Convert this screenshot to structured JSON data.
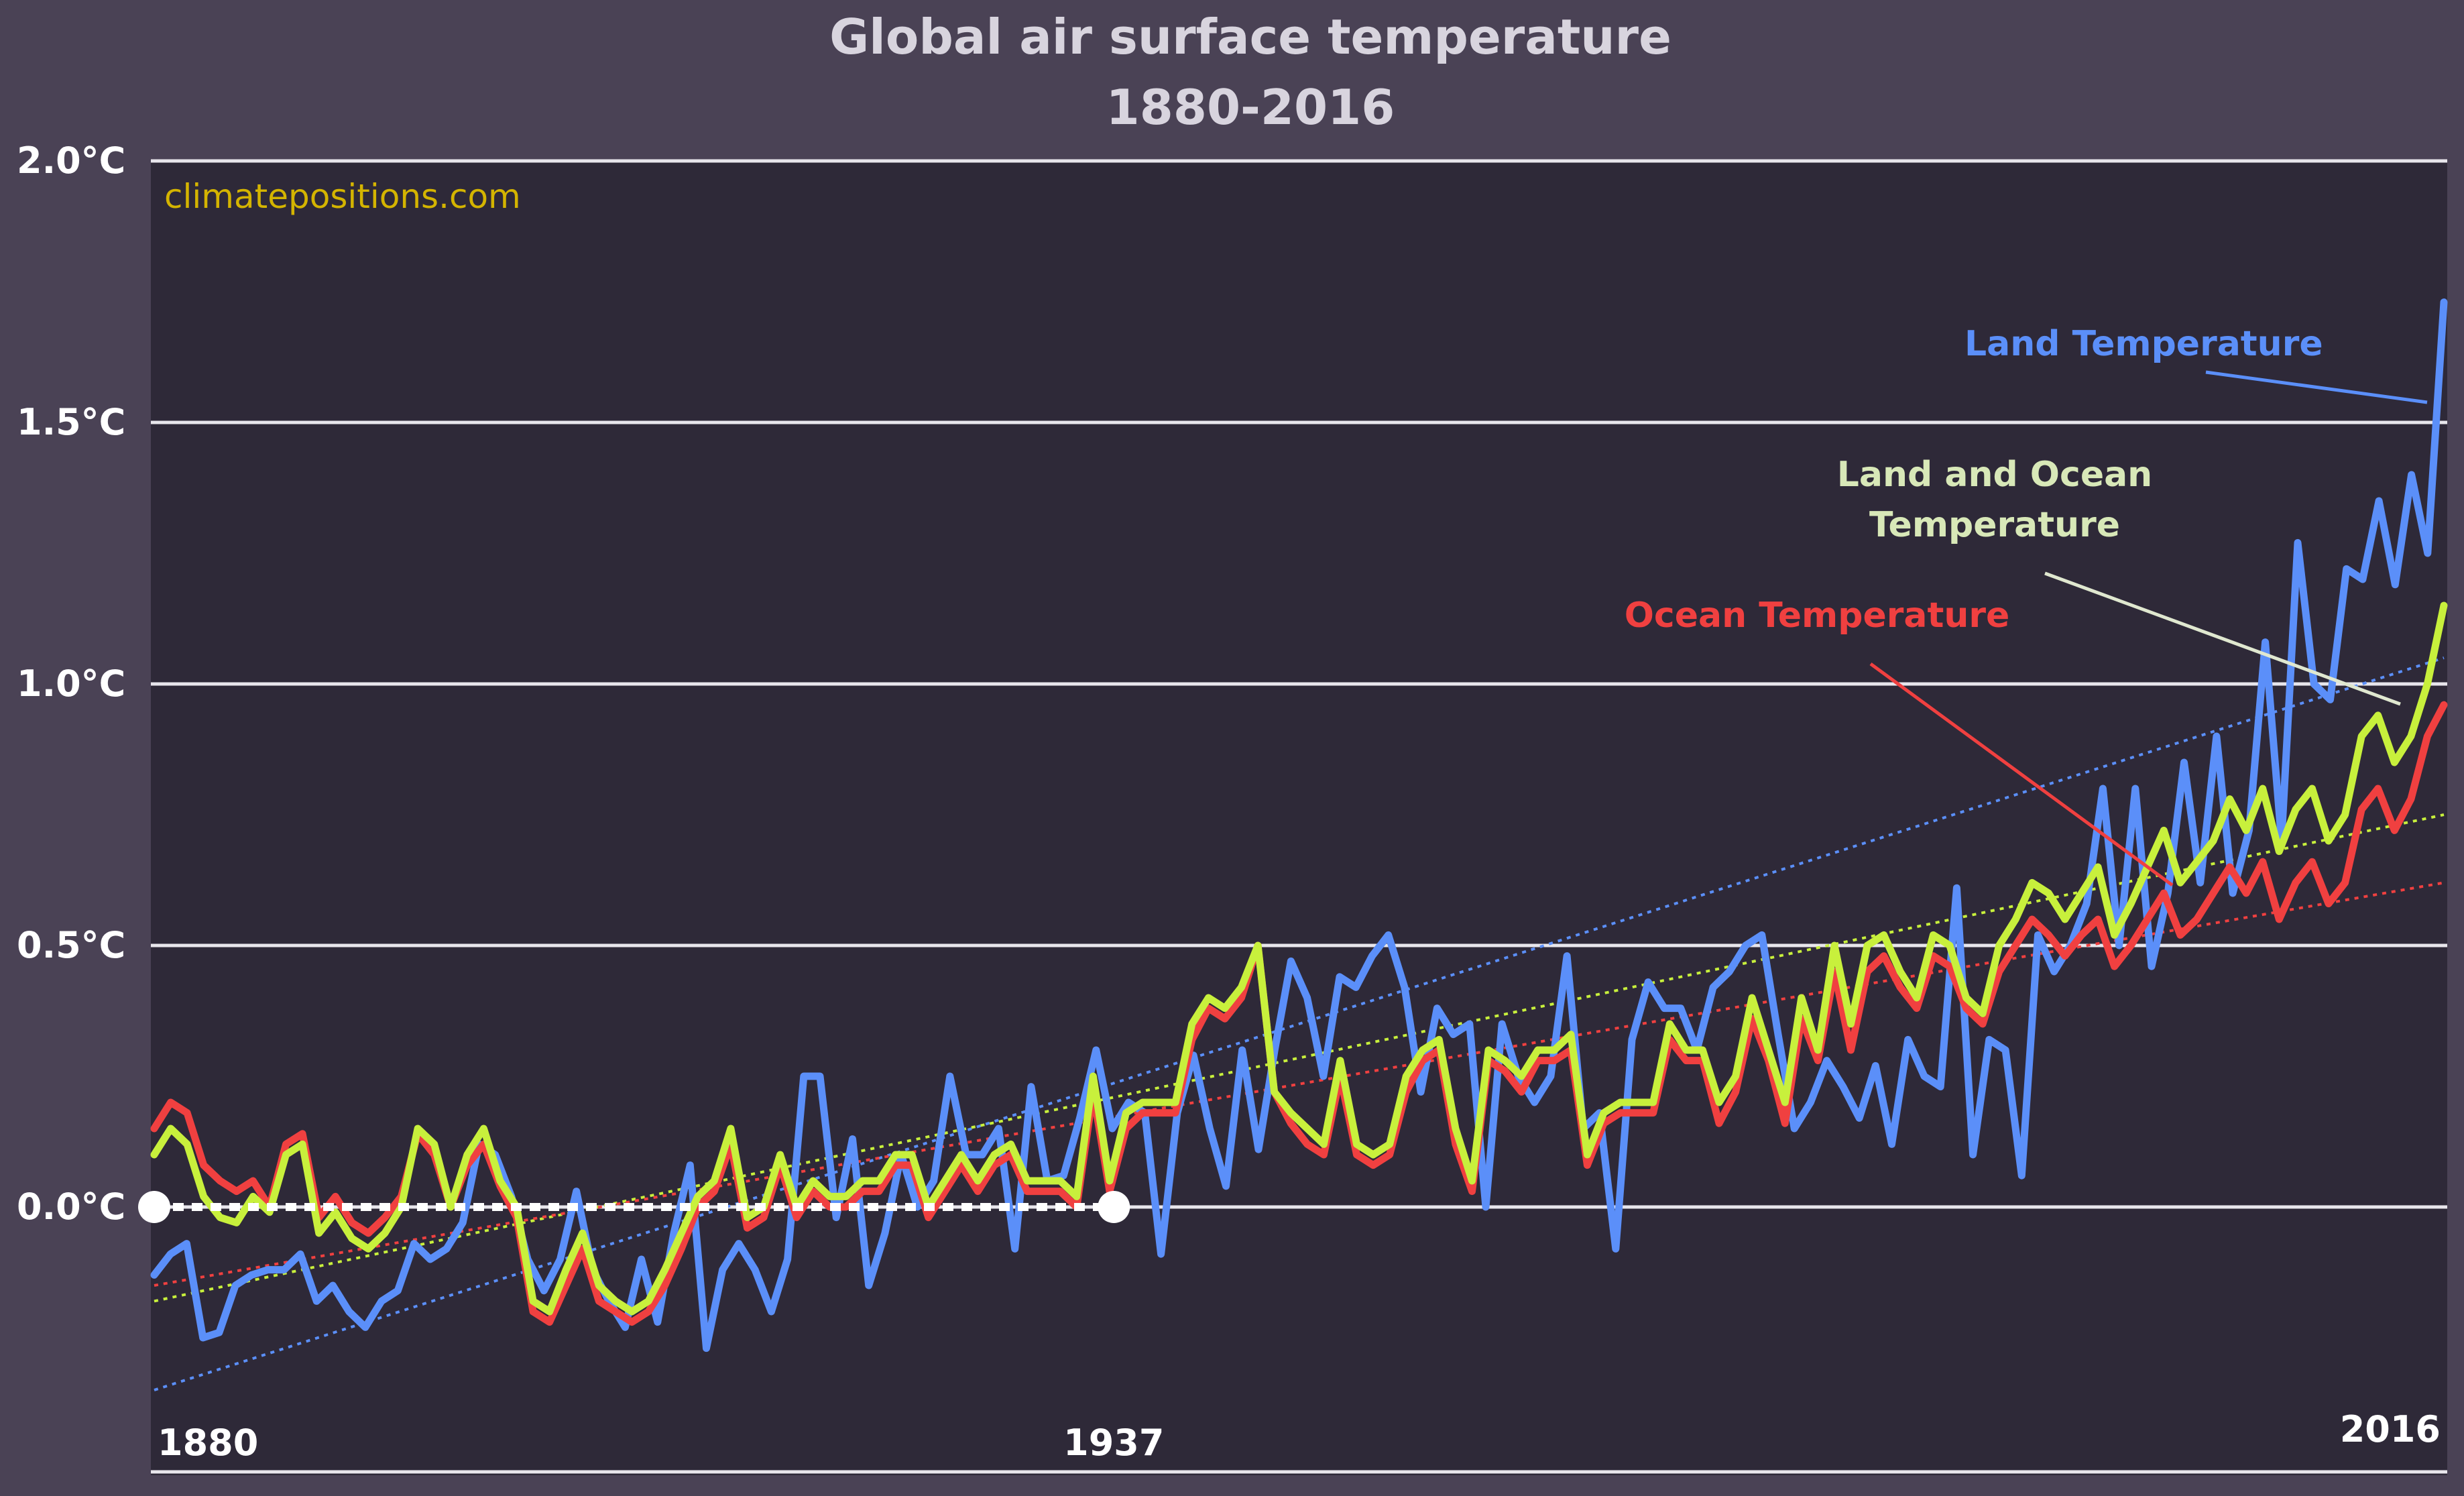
{
  "chart_data": {
    "type": "line",
    "title": "Global air surface temperature",
    "subtitle": "1880-2016",
    "watermark": "climatepositions.com",
    "xlabel": "",
    "ylabel": "",
    "xlim": [
      1880,
      2016
    ],
    "ylim": [
      -0.35,
      2.0
    ],
    "y_ticks": [
      0.0,
      0.5,
      1.0,
      1.5,
      2.0
    ],
    "y_tick_labels": [
      "0.0°C",
      "0.5°C",
      "1.0°C",
      "1.5°C",
      "2.0°C"
    ],
    "x_tick_labels": [
      {
        "x": 1880,
        "label": "1880"
      },
      {
        "x": 1937,
        "label": "1937"
      },
      {
        "x": 2016,
        "label": "2016"
      }
    ],
    "grid": true,
    "colors": {
      "background": "#4a4255",
      "plot": "#2e2938",
      "land": "#5b8ff9",
      "ocean": "#f04040",
      "land_ocean": "#c8f03c",
      "watermark": "#d4b400",
      "baseline": "#ffffff"
    },
    "baseline": {
      "x_start": 1880,
      "x_end": 1937,
      "y": 0.0
    },
    "annotations": [
      {
        "text": "Land  Temperature",
        "series": "Land Temperature",
        "color": "#5b8ff9"
      },
      {
        "text": "Land and Ocean",
        "text2": "Temperature",
        "series": "Land and Ocean Temperature",
        "color": "#d8e8b8"
      },
      {
        "text": "Ocean Temperature",
        "series": "Ocean Temperature",
        "color": "#f04040"
      }
    ],
    "series": [
      {
        "name": "Land Temperature",
        "x_start": 1880,
        "values": [
          -0.13,
          -0.09,
          -0.07,
          -0.25,
          -0.24,
          -0.15,
          -0.13,
          -0.12,
          -0.12,
          -0.09,
          -0.18,
          -0.15,
          -0.2,
          -0.23,
          -0.18,
          -0.16,
          -0.07,
          -0.1,
          -0.08,
          -0.03,
          0.12,
          0.1,
          0.02,
          -0.1,
          -0.16,
          -0.1,
          0.03,
          -0.12,
          -0.18,
          -0.23,
          -0.1,
          -0.22,
          -0.05,
          0.08,
          -0.27,
          -0.12,
          -0.07,
          -0.12,
          -0.2,
          -0.1,
          0.25,
          0.25,
          -0.02,
          0.13,
          -0.15,
          -0.05,
          0.1,
          0.0,
          0.05,
          0.25,
          0.1,
          0.1,
          0.15,
          -0.08,
          0.23,
          0.05,
          0.06,
          0.17,
          0.3,
          0.15,
          0.2,
          0.18,
          -0.09,
          0.18,
          0.29,
          0.15,
          0.04,
          0.3,
          0.11,
          0.3,
          0.47,
          0.4,
          0.25,
          0.44,
          0.42,
          0.48,
          0.52,
          0.42,
          0.22,
          0.38,
          0.33,
          0.35,
          0.0,
          0.35,
          0.25,
          0.2,
          0.25,
          0.48,
          0.15,
          0.18,
          -0.08,
          0.32,
          0.43,
          0.38,
          0.38,
          0.3,
          0.42,
          0.45,
          0.5,
          0.52,
          0.33,
          0.15,
          0.2,
          0.28,
          0.23,
          0.17,
          0.27,
          0.12,
          0.32,
          0.25,
          0.23,
          0.61,
          0.1,
          0.32,
          0.3,
          0.06,
          0.52,
          0.45,
          0.5,
          0.58,
          0.8,
          0.5,
          0.8,
          0.46,
          0.6,
          0.85,
          0.62,
          0.9,
          0.6,
          0.72,
          1.08,
          0.7,
          1.27,
          1.0,
          0.97,
          1.22,
          1.2,
          1.35,
          1.19,
          1.4,
          1.25,
          1.73
        ],
        "x_end": 2016
      },
      {
        "name": "Land and Ocean Temperature",
        "x_start": 1880,
        "values": [
          0.1,
          0.15,
          0.12,
          0.02,
          -0.02,
          -0.03,
          0.02,
          -0.01,
          0.1,
          0.12,
          -0.05,
          -0.01,
          -0.06,
          -0.08,
          -0.05,
          0.0,
          0.15,
          0.12,
          0.0,
          0.1,
          0.15,
          0.05,
          0.0,
          -0.18,
          -0.2,
          -0.12,
          -0.05,
          -0.15,
          -0.18,
          -0.2,
          -0.18,
          -0.12,
          -0.05,
          0.02,
          0.05,
          0.15,
          -0.02,
          0.0,
          0.1,
          0.0,
          0.05,
          0.02,
          0.02,
          0.05,
          0.05,
          0.1,
          0.1,
          0.0,
          0.05,
          0.1,
          0.05,
          0.1,
          0.12,
          0.05,
          0.05,
          0.05,
          0.02,
          0.25,
          0.05,
          0.18,
          0.2,
          0.2,
          0.2,
          0.35,
          0.4,
          0.38,
          0.42,
          0.5,
          0.22,
          0.18,
          0.15,
          0.12,
          0.28,
          0.12,
          0.1,
          0.12,
          0.25,
          0.3,
          0.32,
          0.15,
          0.05,
          0.3,
          0.28,
          0.25,
          0.3,
          0.3,
          0.33,
          0.1,
          0.18,
          0.2,
          0.2,
          0.2,
          0.35,
          0.3,
          0.3,
          0.2,
          0.25,
          0.4,
          0.3,
          0.2,
          0.4,
          0.3,
          0.5,
          0.35,
          0.5,
          0.52,
          0.45,
          0.4,
          0.52,
          0.5,
          0.4,
          0.37,
          0.5,
          0.55,
          0.62,
          0.6,
          0.55,
          0.6,
          0.65,
          0.52,
          0.58,
          0.65,
          0.72,
          0.62,
          0.66,
          0.7,
          0.78,
          0.72,
          0.8,
          0.68,
          0.76,
          0.8,
          0.7,
          0.75,
          0.9,
          0.94,
          0.85,
          0.9,
          1.0,
          1.15
        ],
        "x_end": 2016
      },
      {
        "name": "Ocean Temperature",
        "x_start": 1880,
        "values": [
          0.15,
          0.2,
          0.18,
          0.08,
          0.05,
          0.03,
          0.05,
          0.0,
          0.12,
          0.14,
          -0.02,
          0.02,
          -0.03,
          -0.05,
          -0.02,
          0.02,
          0.14,
          0.1,
          0.0,
          0.08,
          0.12,
          0.04,
          -0.02,
          -0.2,
          -0.22,
          -0.15,
          -0.08,
          -0.18,
          -0.2,
          -0.22,
          -0.2,
          -0.15,
          -0.08,
          0.0,
          0.03,
          0.12,
          -0.04,
          -0.02,
          0.08,
          -0.02,
          0.03,
          0.0,
          0.0,
          0.03,
          0.03,
          0.08,
          0.08,
          -0.02,
          0.03,
          0.08,
          0.03,
          0.08,
          0.1,
          0.03,
          0.03,
          0.03,
          0.0,
          0.22,
          0.03,
          0.15,
          0.18,
          0.18,
          0.18,
          0.32,
          0.38,
          0.36,
          0.4,
          0.5,
          0.22,
          0.16,
          0.12,
          0.1,
          0.25,
          0.1,
          0.08,
          0.1,
          0.22,
          0.28,
          0.3,
          0.12,
          0.03,
          0.28,
          0.26,
          0.22,
          0.28,
          0.28,
          0.3,
          0.08,
          0.16,
          0.18,
          0.18,
          0.18,
          0.32,
          0.28,
          0.28,
          0.16,
          0.22,
          0.36,
          0.28,
          0.16,
          0.36,
          0.28,
          0.45,
          0.3,
          0.45,
          0.48,
          0.42,
          0.38,
          0.48,
          0.46,
          0.38,
          0.35,
          0.45,
          0.5,
          0.55,
          0.52,
          0.48,
          0.52,
          0.55,
          0.46,
          0.5,
          0.55,
          0.6,
          0.52,
          0.55,
          0.6,
          0.65,
          0.6,
          0.66,
          0.55,
          0.62,
          0.66,
          0.58,
          0.62,
          0.76,
          0.8,
          0.72,
          0.78,
          0.9,
          0.96
        ],
        "x_end": 2016
      }
    ],
    "trendlines": [
      {
        "series": "Land Temperature",
        "y_start": -0.35,
        "y_end": 1.05
      },
      {
        "series": "Land and Ocean Temperature",
        "y_start": -0.18,
        "y_end": 0.75
      },
      {
        "series": "Ocean Temperature",
        "y_start": -0.15,
        "y_end": 0.62
      }
    ]
  }
}
